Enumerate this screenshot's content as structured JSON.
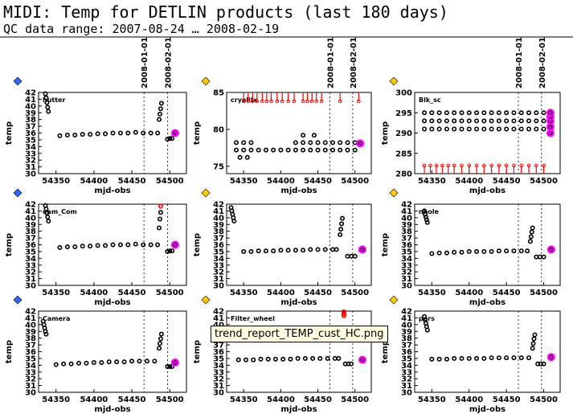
{
  "title": "MIDI: Temp for DETLIN products (last 180 days)",
  "subtitle": "QC data range: 2007-08-24 … 2008-02-19",
  "tooltip": "trend_report_TEMP_cust_HC.png",
  "chart_data": [
    {
      "type": "scatter",
      "label": "hutter",
      "xlabel": "mjd-obs",
      "ylabel": "temp",
      "xlim": [
        54327,
        54522
      ],
      "xticks": [
        54350,
        54400,
        54450,
        54500
      ],
      "ylim": [
        30,
        42
      ],
      "yticks": [
        30,
        31,
        32,
        33,
        34,
        35,
        36,
        37,
        38,
        39,
        40,
        41,
        42
      ],
      "vlines": [
        54466,
        54497
      ],
      "vline_labels": [
        "2008-01-01",
        "2008-02-01"
      ],
      "series": [
        {
          "color": "#000000",
          "x": [
            54336,
            54337,
            54338,
            54339,
            54340,
            54355,
            54365,
            54375,
            54385,
            54395,
            54405,
            54415,
            54425,
            54435,
            54445,
            54455,
            54465,
            54475,
            54484,
            54486,
            54487,
            54488,
            54489,
            54497,
            54500,
            54503
          ],
          "values": [
            41.8,
            41.2,
            40.5,
            39.8,
            39.2,
            35.6,
            35.7,
            35.7,
            35.8,
            35.8,
            35.9,
            35.9,
            36.0,
            36.0,
            36.0,
            36.1,
            36.0,
            36.0,
            36.0,
            38.0,
            38.8,
            39.6,
            40.4,
            35.1,
            35.2,
            35.2
          ]
        },
        {
          "color": "#ff00ff",
          "x": [
            54507
          ],
          "values": [
            36.0
          ]
        }
      ]
    },
    {
      "type": "scatter",
      "label": "cryolite",
      "xlabel": "mjd-obs",
      "ylabel": "temp",
      "xlim": [
        54327,
        54522
      ],
      "xticks": [
        54350,
        54400,
        54450,
        54500
      ],
      "ylim": [
        74,
        85
      ],
      "yticks": [
        75,
        80,
        85
      ],
      "vlines": [
        54466,
        54497
      ],
      "vline_labels": [
        "2008-01-01",
        "2008-02-01"
      ],
      "series": [
        {
          "color": "#000000",
          "x": [
            54340,
            54350,
            54360,
            54370,
            54380,
            54390,
            54400,
            54410,
            54420,
            54430,
            54440,
            54450,
            54460,
            54470,
            54480,
            54490,
            54500
          ],
          "values": [
            77.2,
            77.2,
            77.2,
            77.2,
            77.2,
            77.2,
            77.2,
            77.2,
            77.2,
            77.2,
            77.2,
            77.2,
            77.2,
            77.2,
            77.2,
            77.2,
            77.2
          ]
        },
        {
          "color": "#000000",
          "x": [
            54340,
            54350,
            54360,
            54420,
            54430,
            54440,
            54450,
            54460,
            54470,
            54480,
            54490,
            54500
          ],
          "values": [
            78.2,
            78.2,
            78.2,
            78.2,
            78.2,
            78.2,
            78.2,
            78.2,
            78.2,
            78.2,
            78.2,
            78.2
          ]
        },
        {
          "color": "#000000",
          "x": [
            54345,
            54355,
            54430,
            54445
          ],
          "values": [
            76.2,
            76.2,
            79.2,
            79.2
          ]
        },
        {
          "color": "#ff0000",
          "marker": "arrow",
          "x": [
            54350,
            54356,
            54362,
            54368,
            54375,
            54381,
            54387,
            54395,
            54402,
            54410,
            54418,
            54430,
            54436,
            54442,
            54448,
            54455,
            54480,
            54505
          ],
          "values": [
            83.8,
            83.8,
            83.8,
            83.8,
            83.8,
            83.8,
            83.8,
            83.8,
            83.8,
            83.8,
            83.8,
            83.8,
            83.8,
            83.8,
            83.8,
            83.8,
            83.8,
            83.8
          ]
        },
        {
          "color": "#ff00ff",
          "x": [
            54507
          ],
          "values": [
            78.1
          ]
        }
      ]
    },
    {
      "type": "scatter",
      "label": "Blk_sc",
      "xlabel": "mjd-obs",
      "ylabel": "temp",
      "xlim": [
        54327,
        54522
      ],
      "xticks": [
        54350,
        54400,
        54450,
        54500
      ],
      "ylim": [
        280,
        300
      ],
      "yticks": [
        280,
        285,
        290,
        295,
        300
      ],
      "vlines": [
        54466,
        54497
      ],
      "vline_labels": [
        "2008-01-01",
        "2008-02-01"
      ],
      "series": [
        {
          "color": "#000000",
          "x": [
            54340,
            54350,
            54360,
            54370,
            54380,
            54390,
            54400,
            54410,
            54420,
            54430,
            54440,
            54450,
            54460,
            54470,
            54480,
            54490,
            54500
          ],
          "values": [
            295,
            295,
            295,
            295,
            295,
            295,
            295,
            295,
            295,
            295,
            295,
            295,
            295,
            295,
            295,
            295,
            295
          ]
        },
        {
          "color": "#000000",
          "x": [
            54340,
            54350,
            54360,
            54370,
            54380,
            54390,
            54400,
            54410,
            54420,
            54430,
            54440,
            54450,
            54460,
            54470,
            54480,
            54490,
            54500
          ],
          "values": [
            293,
            293,
            293,
            293,
            293,
            293,
            293,
            293,
            293,
            293,
            293,
            293,
            293,
            293,
            293,
            293,
            293
          ]
        },
        {
          "color": "#000000",
          "x": [
            54340,
            54350,
            54360,
            54370,
            54380,
            54390,
            54400,
            54410,
            54420,
            54430,
            54440,
            54450,
            54460,
            54470,
            54480,
            54490,
            54500
          ],
          "values": [
            291,
            291,
            291,
            291,
            291,
            291,
            291,
            291,
            291,
            291,
            291,
            291,
            291,
            291,
            291,
            291,
            291
          ]
        },
        {
          "color": "#ff0000",
          "marker": "arrow",
          "x": [
            54340,
            54348,
            54356,
            54364,
            54372,
            54380,
            54390,
            54400,
            54410,
            54420,
            54430,
            54440,
            54450,
            54460,
            54470,
            54480,
            54490,
            54500
          ],
          "values": [
            282,
            282,
            282,
            282,
            282,
            282,
            282,
            282,
            282,
            282,
            282,
            282,
            282,
            282,
            282,
            282,
            282,
            282
          ]
        },
        {
          "color": "#ff00ff",
          "x": [
            54509,
            54509,
            54509,
            54509,
            54509
          ],
          "values": [
            290,
            291.5,
            293,
            294,
            295
          ]
        }
      ]
    },
    {
      "type": "scatter",
      "label": "eam_Com",
      "xlabel": "mjd-obs",
      "ylabel": "temp",
      "xlim": [
        54327,
        54522
      ],
      "xticks": [
        54350,
        54400,
        54450,
        54500
      ],
      "ylim": [
        30,
        42
      ],
      "yticks": [
        30,
        31,
        32,
        33,
        34,
        35,
        36,
        37,
        38,
        39,
        40,
        41,
        42
      ],
      "vlines": [
        54466,
        54497
      ],
      "series": [
        {
          "color": "#000000",
          "x": [
            54336,
            54337,
            54338,
            54339,
            54340,
            54355,
            54365,
            54375,
            54385,
            54395,
            54405,
            54415,
            54425,
            54435,
            54445,
            54455,
            54465,
            54475,
            54484,
            54486,
            54487,
            54488,
            54497,
            54500,
            54503
          ],
          "values": [
            41.8,
            41.3,
            40.7,
            40.1,
            39.5,
            35.6,
            35.7,
            35.7,
            35.8,
            35.8,
            35.9,
            35.9,
            36.0,
            36.0,
            36.0,
            36.1,
            36.0,
            36.0,
            36.0,
            38.5,
            39.8,
            40.8,
            35.0,
            35.1,
            35.1
          ]
        },
        {
          "color": "#ff0000",
          "x": [
            54488
          ],
          "values": [
            41.7
          ]
        },
        {
          "color": "#ff00ff",
          "x": [
            54507
          ],
          "values": [
            36.0
          ]
        }
      ]
    },
    {
      "type": "scatter",
      "xlabel": "mjd-obs",
      "ylabel": "temp",
      "xlim": [
        54327,
        54522
      ],
      "xticks": [
        54350,
        54400,
        54450,
        54500
      ],
      "ylim": [
        30,
        42
      ],
      "yticks": [
        30,
        31,
        32,
        33,
        34,
        35,
        36,
        37,
        38,
        39,
        40,
        41,
        42
      ],
      "vlines": [
        54466,
        54497
      ],
      "series": [
        {
          "color": "#000000",
          "x": [
            54333,
            54334,
            54335,
            54336,
            54337,
            54350,
            54360,
            54370,
            54380,
            54390,
            54400,
            54410,
            54420,
            54430,
            54440,
            54450,
            54460,
            54470,
            54475,
            54480,
            54481,
            54482,
            54483,
            54490,
            54495,
            54500
          ],
          "values": [
            41.5,
            41.0,
            40.5,
            40.0,
            39.5,
            35.0,
            35.0,
            35.1,
            35.1,
            35.1,
            35.2,
            35.2,
            35.2,
            35.2,
            35.3,
            35.3,
            35.3,
            35.3,
            35.3,
            37.5,
            38.3,
            39.1,
            39.9,
            34.3,
            34.3,
            34.3
          ]
        },
        {
          "color": "#ff00ff",
          "x": [
            54510
          ],
          "values": [
            35.3
          ]
        }
      ]
    },
    {
      "type": "scatter",
      "label": "nhole",
      "xlabel": "mjd-obs",
      "ylabel": "temp",
      "xlim": [
        54327,
        54522
      ],
      "xticks": [
        54350,
        54400,
        54450,
        54500
      ],
      "ylim": [
        30,
        42
      ],
      "yticks": [
        30,
        31,
        32,
        33,
        34,
        35,
        36,
        37,
        38,
        39,
        40,
        41,
        42
      ],
      "vlines": [
        54466,
        54497
      ],
      "series": [
        {
          "color": "#000000",
          "x": [
            54340,
            54341,
            54342,
            54343,
            54344,
            54350,
            54360,
            54370,
            54380,
            54390,
            54400,
            54410,
            54420,
            54430,
            54440,
            54450,
            54460,
            54470,
            54478,
            54482,
            54483,
            54484,
            54485,
            54490,
            54495,
            54500
          ],
          "values": [
            41.0,
            40.5,
            40.1,
            39.7,
            39.3,
            34.7,
            34.8,
            34.8,
            34.9,
            34.9,
            35.0,
            35.0,
            35.0,
            35.0,
            35.1,
            35.1,
            35.1,
            35.1,
            35.1,
            36.5,
            37.2,
            37.9,
            38.5,
            34.2,
            34.2,
            34.2
          ]
        },
        {
          "color": "#ff00ff",
          "x": [
            54510
          ],
          "values": [
            35.3
          ]
        }
      ]
    },
    {
      "type": "scatter",
      "label": "Camera",
      "xlabel": "mjd-obs",
      "ylabel": "temp",
      "xlim": [
        54327,
        54522
      ],
      "xticks": [
        54350,
        54400,
        54450,
        54500
      ],
      "ylim": [
        30,
        42
      ],
      "yticks": [
        30,
        31,
        32,
        33,
        34,
        35,
        36,
        37,
        38,
        39,
        40,
        41,
        42
      ],
      "vlines": [
        54466,
        54497
      ],
      "series": [
        {
          "color": "#000000",
          "x": [
            54333,
            54334,
            54335,
            54336,
            54337,
            54350,
            54360,
            54370,
            54380,
            54390,
            54400,
            54410,
            54420,
            54430,
            54440,
            54450,
            54460,
            54470,
            54480,
            54486,
            54487,
            54488,
            54489,
            54497,
            54500,
            54503
          ],
          "values": [
            40.5,
            40.0,
            39.5,
            39.0,
            38.6,
            34.1,
            34.2,
            34.2,
            34.3,
            34.3,
            34.4,
            34.4,
            34.5,
            34.5,
            34.5,
            34.6,
            34.6,
            34.6,
            34.6,
            36.5,
            37.2,
            37.9,
            38.6,
            33.8,
            33.8,
            33.8
          ]
        },
        {
          "color": "#ff00ff",
          "x": [
            54507
          ],
          "values": [
            34.4
          ]
        }
      ]
    },
    {
      "type": "scatter",
      "label": "Filter_wheel",
      "xlabel": "mjd-obs",
      "ylabel": "temp",
      "xlim": [
        54327,
        54522
      ],
      "xticks": [
        54350,
        54400,
        54450,
        54500
      ],
      "ylim": [
        30,
        42
      ],
      "yticks": [
        30,
        31,
        32,
        33,
        34,
        35,
        36,
        37,
        38,
        39,
        40,
        41,
        42
      ],
      "vlines": [
        54466,
        54497
      ],
      "series": [
        {
          "color": "#000000",
          "x": [
            54343,
            54353,
            54363,
            54373,
            54383,
            54393,
            54403,
            54413,
            54423,
            54433,
            54443,
            54453,
            54463,
            54473,
            54478,
            54487,
            54491,
            54495
          ],
          "values": [
            34.8,
            34.8,
            34.8,
            34.9,
            34.9,
            34.9,
            34.9,
            34.9,
            35.0,
            35.0,
            35.0,
            35.0,
            35.0,
            35.0,
            35.0,
            34.2,
            34.2,
            34.2
          ]
        },
        {
          "color": "#ff0000",
          "x": [
            54485,
            54485,
            54485
          ],
          "values": [
            41.3,
            41.6,
            41.9
          ]
        },
        {
          "color": "#ff00ff",
          "x": [
            54510
          ],
          "values": [
            34.8
          ]
        }
      ]
    },
    {
      "type": "scatter",
      "label": "pers",
      "xlabel": "mjd-obs",
      "ylabel": "temp",
      "xlim": [
        54327,
        54522
      ],
      "xticks": [
        54350,
        54400,
        54450,
        54500
      ],
      "ylim": [
        30,
        42
      ],
      "yticks": [
        30,
        31,
        32,
        33,
        34,
        35,
        36,
        37,
        38,
        39,
        40,
        41,
        42
      ],
      "vlines": [
        54466,
        54497
      ],
      "series": [
        {
          "color": "#000000",
          "x": [
            54340,
            54341,
            54342,
            54343,
            54344,
            54350,
            54360,
            54370,
            54380,
            54390,
            54400,
            54410,
            54420,
            54430,
            54440,
            54450,
            54460,
            54470,
            54480,
            54485,
            54486,
            54487,
            54488,
            54492,
            54496,
            54500
          ],
          "values": [
            41.2,
            40.7,
            40.2,
            39.7,
            39.2,
            34.9,
            34.9,
            34.9,
            35.0,
            35.0,
            35.0,
            35.0,
            35.0,
            35.1,
            35.1,
            35.1,
            35.1,
            35.1,
            35.1,
            36.5,
            37.2,
            37.9,
            38.5,
            34.2,
            34.2,
            34.2
          ]
        },
        {
          "color": "#ff00ff",
          "x": [
            54510
          ],
          "values": [
            35.2
          ]
        }
      ]
    }
  ]
}
